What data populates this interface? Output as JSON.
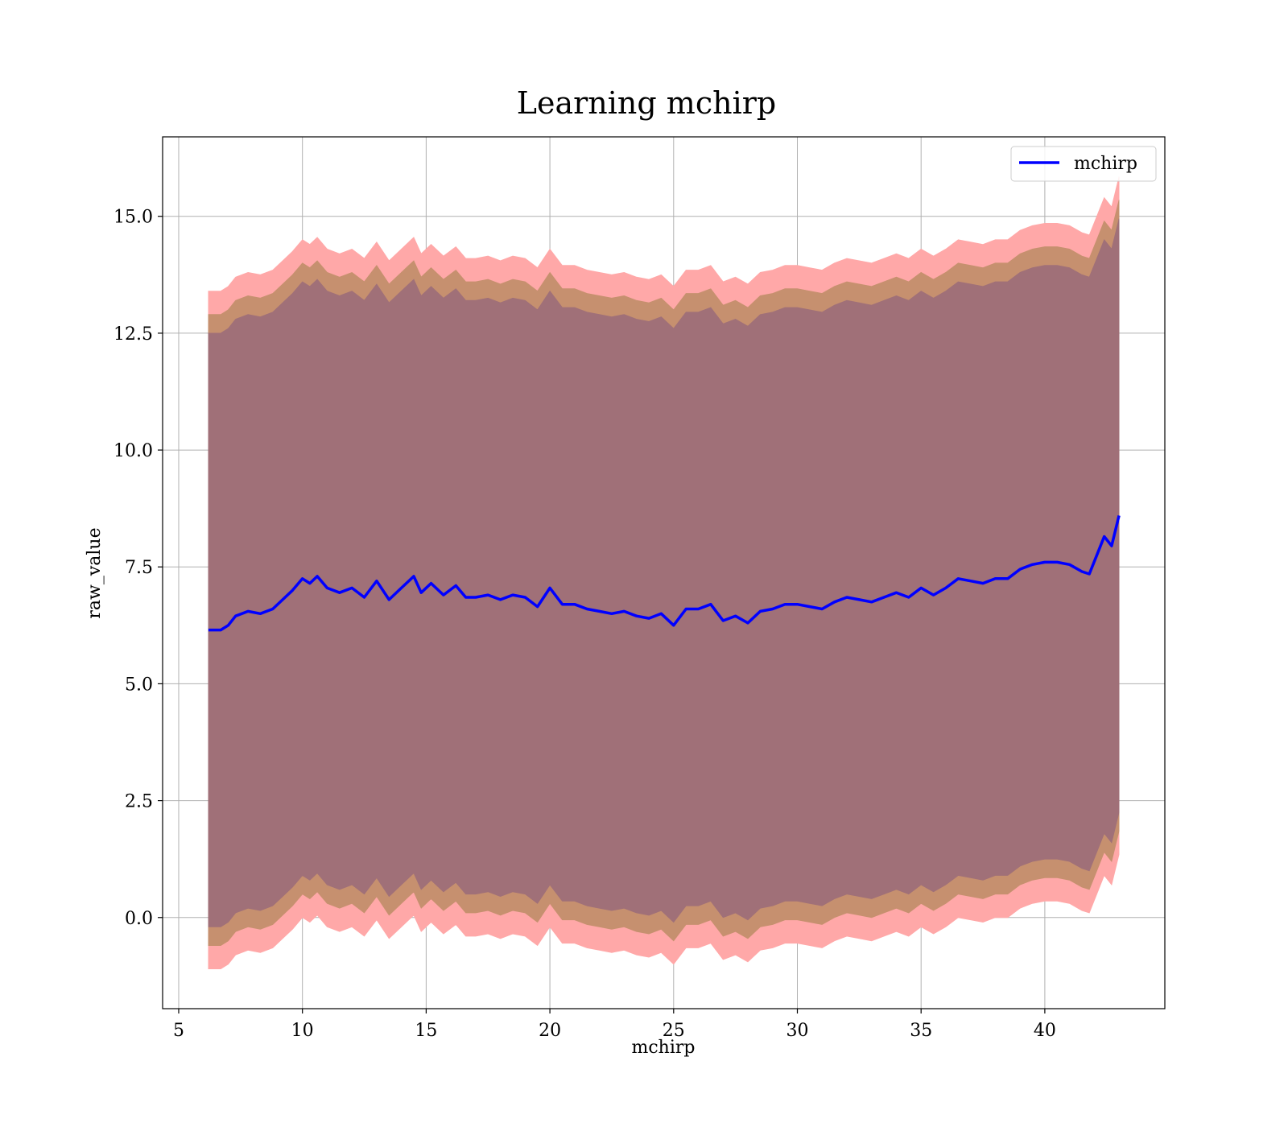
{
  "chart_data": {
    "type": "area",
    "title": "Learning mchirp",
    "xlabel": "mchirp",
    "ylabel": "raw_value",
    "xlim": [
      4.35,
      44.85
    ],
    "ylim": [
      -1.95,
      16.7
    ],
    "xticks": [
      5,
      10,
      15,
      20,
      25,
      30,
      35,
      40
    ],
    "xtick_labels": [
      "5",
      "10",
      "15",
      "20",
      "25",
      "30",
      "35",
      "40"
    ],
    "yticks": [
      0,
      2.5,
      5,
      7.5,
      10,
      12.5,
      15
    ],
    "ytick_labels": [
      "0.0",
      "2.5",
      "5.0",
      "7.5",
      "10.0",
      "12.5",
      "15.0"
    ],
    "grid": true,
    "legend": {
      "position": "top-right",
      "entries": [
        "mchirp"
      ]
    },
    "colors": {
      "line": "#0000ff",
      "band_outer": "#ffa8a8",
      "band_middle": "#c6906f",
      "band_inner": "#a07078",
      "grid": "#b0b0b0"
    },
    "series": [
      {
        "name": "mchirp",
        "x": [
          6.2,
          6.7,
          7.0,
          7.3,
          7.8,
          8.3,
          8.8,
          9.3,
          9.6,
          10.0,
          10.3,
          10.6,
          11.0,
          11.5,
          12.0,
          12.5,
          13.0,
          13.5,
          14.0,
          14.5,
          14.8,
          15.2,
          15.7,
          16.2,
          16.6,
          17.0,
          17.5,
          18.0,
          18.5,
          19.0,
          19.5,
          20.0,
          20.5,
          21.0,
          21.5,
          22.0,
          22.5,
          23.0,
          23.5,
          24.0,
          24.5,
          25.0,
          25.5,
          26.0,
          26.5,
          27.0,
          27.5,
          28.0,
          28.5,
          29.0,
          29.5,
          30.0,
          30.5,
          31.0,
          31.5,
          32.0,
          32.5,
          33.0,
          33.5,
          34.0,
          34.5,
          35.0,
          35.5,
          36.0,
          36.5,
          37.0,
          37.5,
          38.0,
          38.5,
          39.0,
          39.5,
          40.0,
          40.5,
          41.0,
          41.5,
          41.8,
          42.1,
          42.4,
          42.7,
          43.0
        ],
        "values": [
          6.15,
          6.15,
          6.25,
          6.45,
          6.55,
          6.5,
          6.6,
          6.85,
          7.0,
          7.25,
          7.15,
          7.3,
          7.05,
          6.95,
          7.05,
          6.85,
          7.2,
          6.8,
          7.05,
          7.3,
          6.95,
          7.15,
          6.9,
          7.1,
          6.85,
          6.85,
          6.9,
          6.8,
          6.9,
          6.85,
          6.65,
          7.05,
          6.7,
          6.7,
          6.6,
          6.55,
          6.5,
          6.55,
          6.45,
          6.4,
          6.5,
          6.25,
          6.6,
          6.6,
          6.7,
          6.35,
          6.45,
          6.3,
          6.55,
          6.6,
          6.7,
          6.7,
          6.65,
          6.6,
          6.75,
          6.85,
          6.8,
          6.75,
          6.85,
          6.95,
          6.85,
          7.05,
          6.9,
          7.05,
          7.25,
          7.2,
          7.15,
          7.25,
          7.25,
          7.45,
          7.55,
          7.6,
          7.6,
          7.55,
          7.4,
          7.35,
          7.75,
          8.15,
          7.95,
          8.6
        ]
      }
    ],
    "bands": [
      {
        "label": "outer",
        "half_width": 7.25
      },
      {
        "label": "middle",
        "half_width": 6.75
      },
      {
        "label": "inner",
        "half_width": 6.35
      }
    ]
  }
}
